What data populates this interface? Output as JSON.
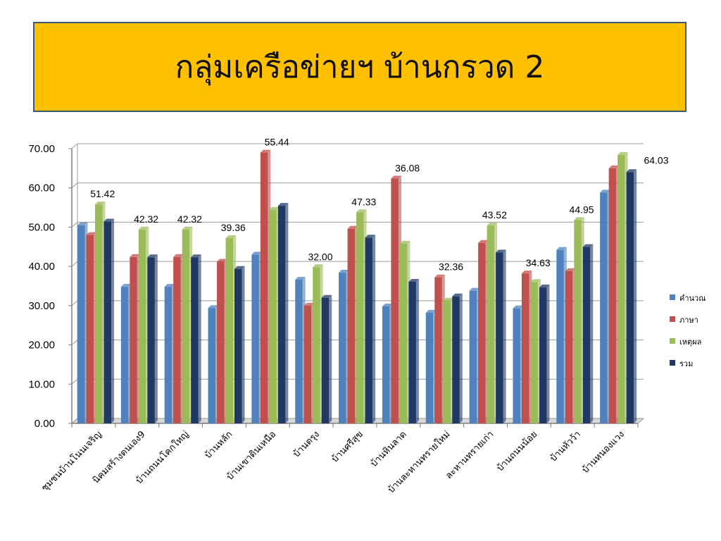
{
  "title": "กลุ่มเครือข่ายฯ บ้านกรวด 2",
  "colors": {
    "banner": "#FFC000",
    "series": [
      "#4F81BD",
      "#C0504D",
      "#9BBB59",
      "#1F3864"
    ]
  },
  "chart_data": {
    "type": "bar",
    "categories": [
      "ชุมชนบ้านโนนเจริญ",
      "นิคมสร้างตนเอง9",
      "บ้านถนนโคกใหญ่",
      "บ้านหลัก",
      "บ้านเขาดินเหนือ",
      "บ้านตรุง",
      "บ้านศรีสุข",
      "บ้านหินลาด",
      "บ้านละหานทรายใหม่",
      "ละหานทรายเก่า",
      "บ้านถนนน้อย",
      "บ้านหัวว้า",
      "บ้านหนองแวง"
    ],
    "series": [
      {
        "name": "คำนวณ",
        "values": [
          50.5,
          34.8,
          34.8,
          29.4,
          43.0,
          36.6,
          38.4,
          29.8,
          28.2,
          33.8,
          29.3,
          44.2,
          58.8
        ]
      },
      {
        "name": "ภาษา",
        "values": [
          48.0,
          42.4,
          42.4,
          41.2,
          69.0,
          30.0,
          49.6,
          62.4,
          37.2,
          46.0,
          38.2,
          38.8,
          65.0
        ]
      },
      {
        "name": "เหตุผล",
        "values": [
          55.8,
          49.4,
          49.4,
          47.2,
          54.4,
          39.8,
          53.8,
          45.8,
          31.3,
          50.4,
          36.0,
          51.8,
          68.4
        ]
      },
      {
        "name": "รวม",
        "values": [
          51.42,
          42.32,
          42.32,
          39.36,
          55.44,
          32.0,
          47.33,
          36.08,
          32.36,
          43.52,
          34.63,
          44.95,
          64.03
        ]
      }
    ],
    "data_labels": [
      "51.42",
      "42.32",
      "42.32",
      "39.36",
      "55.44",
      "32.00",
      "47.33",
      "36.08",
      "32.36",
      "43.52",
      "34.63",
      "44.95",
      "64.03"
    ],
    "yticks": [
      "0.00",
      "10.00",
      "20.00",
      "30.00",
      "40.00",
      "50.00",
      "60.00",
      "70.00"
    ],
    "ylim": [
      0,
      70
    ],
    "grid": true,
    "legend_position": "right"
  }
}
